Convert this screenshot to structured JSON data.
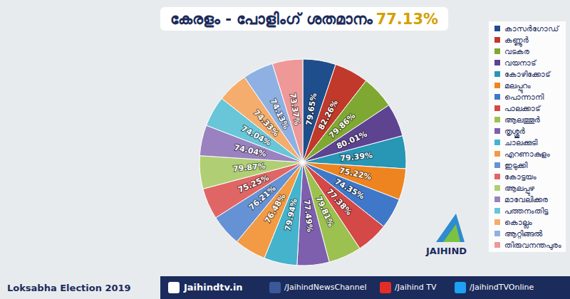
{
  "chart_data": {
    "type": "pie",
    "title": "കേരളം - പോളിംഗ് ശതമാനം 77.13%",
    "categories": [
      "കാസർഗോഡ്",
      "കണ്ണൂർ",
      "വടകര",
      "വയനാട്",
      "കോഴിക്കോട്",
      "മലപ്പുറം",
      "പൊന്നാനി",
      "പാലക്കാട്",
      "ആലത്തൂർ",
      "തൃശ്ശൂർ",
      "ചാലക്കുടി",
      "എറണാകുളം",
      "ഇടുക്കി",
      "കോട്ടയം",
      "ആലപ്പുഴ",
      "മാവേലിക്കര",
      "പത്തനംതിട്ട",
      "കൊല്ലം",
      "ആറ്റിങ്ങൽ",
      "തിരുവനന്തപുരം"
    ],
    "values": [
      79.65,
      82.26,
      79.86,
      80.01,
      79.39,
      75.22,
      74.35,
      77.38,
      79.81,
      77.49,
      79.94,
      76.48,
      76.21,
      75.25,
      79.87,
      74.04,
      74.04,
      74.33,
      74.13,
      73.37
    ],
    "value_labels": [
      "79.65%",
      "82.26%",
      "79.86%",
      "80.01%",
      "79.39%",
      "75.22%",
      "74.35%",
      "77.38%",
      "79.81%",
      "77.49%",
      "79.94%",
      "76.48%",
      "76.21%",
      "75.25%",
      "79.87%",
      "74.04%",
      "74.04%",
      "74.33%",
      "74.13%",
      "73.37%"
    ],
    "colors": [
      "#1f4e8c",
      "#c0392b",
      "#7fa832",
      "#5e4391",
      "#2896b5",
      "#ee8420",
      "#3f78c8",
      "#d44848",
      "#9cc150",
      "#7d5fae",
      "#45b3cc",
      "#f29a44",
      "#6592d4",
      "#e06666",
      "#b0cf74",
      "#9a82c0",
      "#68c6d8",
      "#f4ad6c",
      "#8fb0e2",
      "#ee9898"
    ],
    "data_labels": true,
    "legend": "right"
  },
  "footer": {
    "election": "Loksabha Election 2019",
    "website": "Jaihindtv.in",
    "facebook": "/JaihindNewsChannel",
    "youtube": "/Jaihind TV",
    "twitter": "/JaihindTVOnline",
    "logo": "JAIHIND"
  }
}
